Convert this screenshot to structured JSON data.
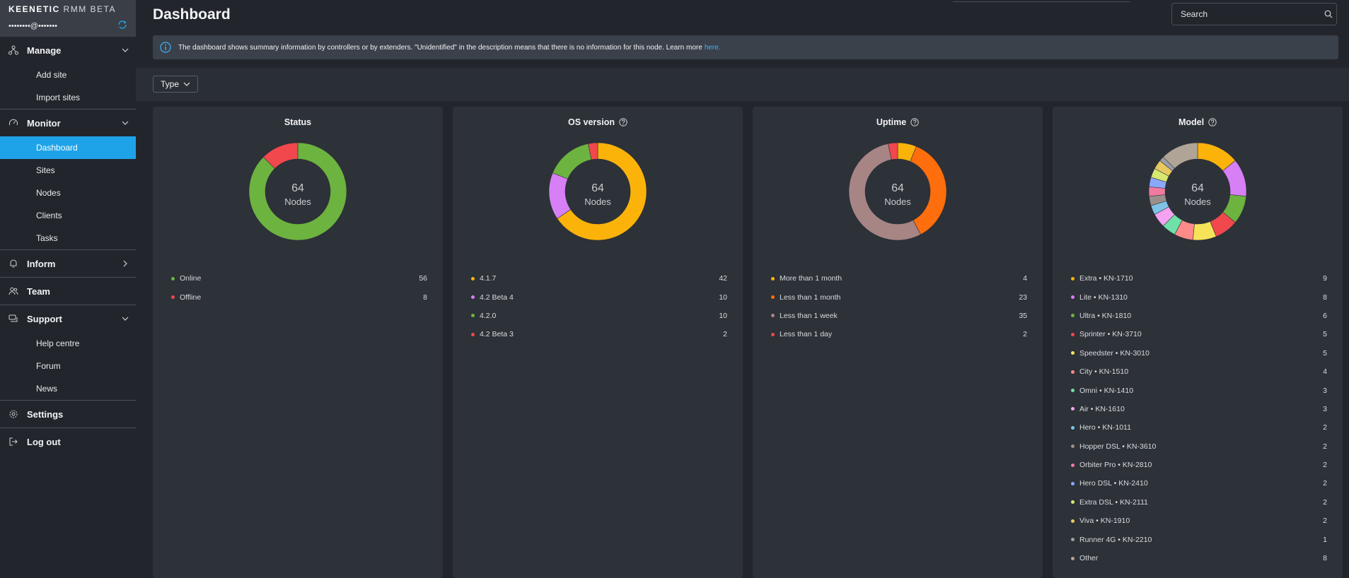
{
  "brand": {
    "logo_main": "KEENETIC",
    "logo_rest": "RMM BETA",
    "account": "••••••••@•••••••"
  },
  "sidebar": {
    "manage": {
      "label": "Manage",
      "items": [
        "Add site",
        "Import sites"
      ]
    },
    "monitor": {
      "label": "Monitor",
      "items": [
        "Dashboard",
        "Sites",
        "Nodes",
        "Clients",
        "Tasks"
      ],
      "active": "Dashboard"
    },
    "inform": {
      "label": "Inform"
    },
    "team": {
      "label": "Team"
    },
    "support": {
      "label": "Support",
      "items": [
        "Help centre",
        "Forum",
        "News"
      ]
    },
    "settings": {
      "label": "Settings"
    },
    "logout": {
      "label": "Log out"
    }
  },
  "header": {
    "title": "Dashboard",
    "search_placeholder": "Search"
  },
  "banner": {
    "text": "The dashboard shows summary information by controllers or by extenders. \"Unidentified\" in the description means that there is no information for this node. Learn more",
    "link": "here."
  },
  "filter": {
    "type_label": "Type"
  },
  "colors": {
    "accent": "#1fa3e8",
    "link": "#3fb1ff"
  },
  "cards": [
    {
      "title": "Status",
      "help": false,
      "total": "64",
      "unit": "Nodes",
      "chart_data": {
        "type": "pie",
        "labels": [
          "Online",
          "Offline"
        ],
        "values": [
          56,
          8
        ],
        "colors": [
          "#6db33f",
          "#f0484c"
        ]
      }
    },
    {
      "title": "OS version",
      "help": true,
      "total": "64",
      "unit": "Nodes",
      "chart_data": {
        "type": "pie",
        "labels": [
          "4.1.7",
          "4.2 Beta 4",
          "4.2.0",
          "4.2 Beta 3"
        ],
        "values": [
          42,
          10,
          10,
          2
        ],
        "colors": [
          "#fbb30a",
          "#d77ff5",
          "#6db33f",
          "#f0484c"
        ]
      }
    },
    {
      "title": "Uptime",
      "help": true,
      "total": "64",
      "unit": "Nodes",
      "chart_data": {
        "type": "pie",
        "labels": [
          "More than 1 month",
          "Less than 1 month",
          "Less than 1 week",
          "Less than 1 day"
        ],
        "values": [
          4,
          23,
          35,
          2
        ],
        "colors": [
          "#fbb30a",
          "#ff6e0c",
          "#a78585",
          "#f0484c"
        ]
      }
    },
    {
      "title": "Model",
      "help": true,
      "total": "64",
      "unit": "Nodes",
      "chart_data": {
        "type": "pie",
        "labels": [
          "Extra • KN-1710",
          "Lite • KN-1310",
          "Ultra • KN-1810",
          "Sprinter • KN-3710",
          "Speedster • KN-3010",
          "City • KN-1510",
          "Omni • KN-1410",
          "Air • KN-1610",
          "Hero • KN-1011",
          "Hopper DSL • KN-3610",
          "Orbiter Pro • KN-2810",
          "Hero DSL • KN-2410",
          "Extra DSL • KN-2111",
          "Viva • KN-1910",
          "Runner 4G • KN-2210",
          "Other"
        ],
        "values": [
          9,
          8,
          6,
          5,
          5,
          4,
          3,
          3,
          2,
          2,
          2,
          2,
          2,
          2,
          1,
          8
        ],
        "colors": [
          "#fbb30a",
          "#d77ff5",
          "#6db33f",
          "#f0484c",
          "#f7e35a",
          "#ff8a8a",
          "#6fe0a8",
          "#f3a3f0",
          "#7fc4e8",
          "#9a8f8a",
          "#f07aa0",
          "#8aa8ff",
          "#d8e870",
          "#e8c860",
          "#9aa0a6",
          "#b0a496"
        ]
      }
    }
  ]
}
